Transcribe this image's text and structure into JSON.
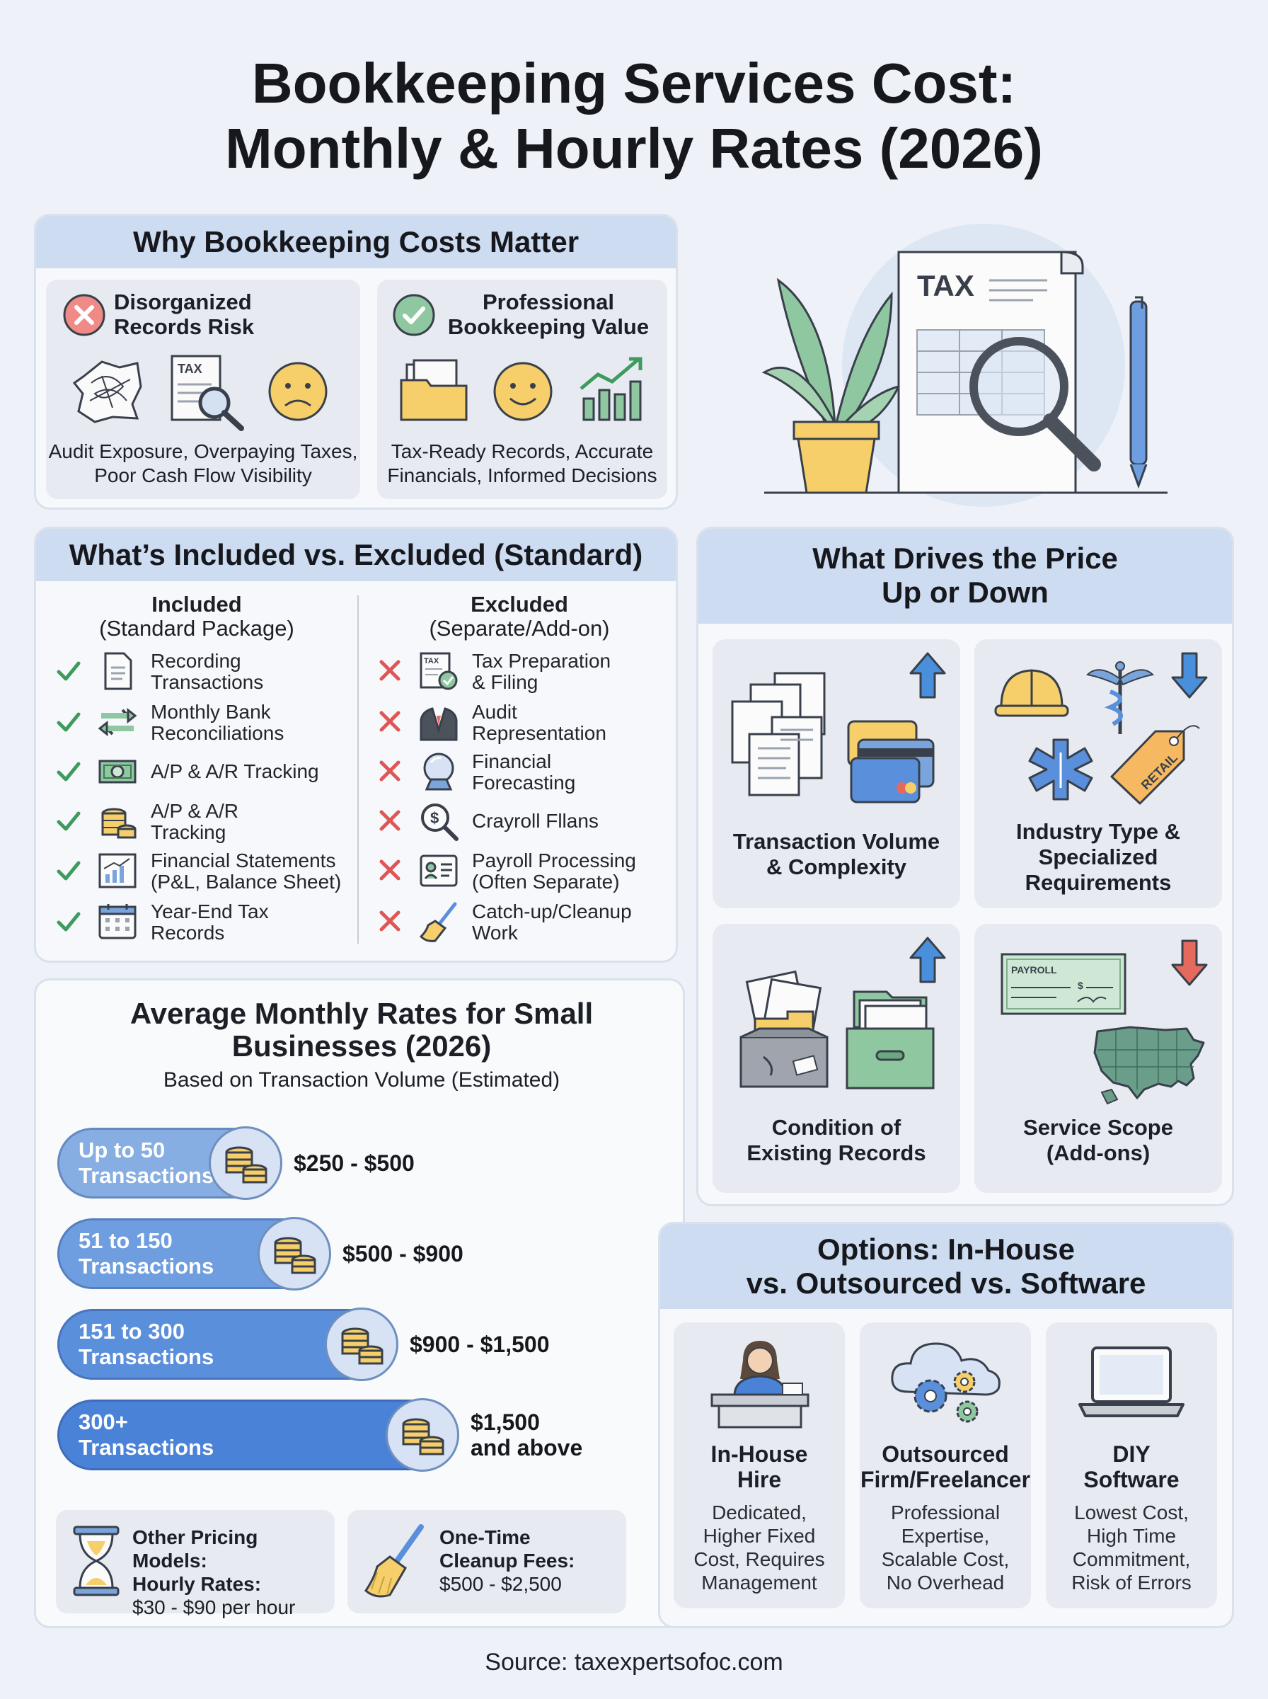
{
  "title": {
    "line1": "Bookkeeping Services Cost:",
    "line2": "Monthly & Hourly Rates (2026)"
  },
  "why": {
    "heading": "Why Bookkeeping Costs Matter",
    "risk": {
      "title_line1": "Disorganized",
      "title_line2": "Records Risk",
      "desc_line1": "Audit Exposure, Overpaying Taxes,",
      "desc_line2": "Poor Cash Flow Visibility",
      "doc_label": "TAX"
    },
    "value": {
      "title_line1": "Professional",
      "title_line2": "Bookkeeping Value",
      "desc_line1": "Tax-Ready Records, Accurate",
      "desc_line2": "Financials, Informed Decisions"
    }
  },
  "hero": {
    "doc_label": "TAX"
  },
  "included": {
    "heading": "What’s Included vs. Excluded (Standard)",
    "included_title": "Included",
    "included_subtitle": "(Standard Package)",
    "excluded_title": "Excluded",
    "excluded_subtitle": "(Separate/Add-on)",
    "items": [
      {
        "l1": "Recording",
        "l2": "Transactions",
        "icon": "document-icon"
      },
      {
        "l1": "Monthly Bank",
        "l2": "Reconciliations",
        "icon": "exchange-arrows-icon"
      },
      {
        "l1": "A/P & A/R Tracking",
        "l2": "",
        "icon": "cash-bill-icon"
      },
      {
        "l1": "A/P & A/R",
        "l2": "Tracking",
        "icon": "coin-stack-icon"
      },
      {
        "l1": "Financial Statements",
        "l2": "(P&L, Balance Sheet)",
        "icon": "bar-chart-icon"
      },
      {
        "l1": "Year-End Tax",
        "l2": "Records",
        "icon": "calendar-icon"
      }
    ],
    "excluded_items": [
      {
        "l1": "Tax Preparation",
        "l2": "& Filing",
        "icon": "tax-check-icon",
        "doc_label": "TAX"
      },
      {
        "l1": "Audit",
        "l2": "Representation",
        "icon": "suit-icon"
      },
      {
        "l1": "Financial",
        "l2": "Forecasting",
        "icon": "crystal-ball-icon"
      },
      {
        "l1": "Crayroll Fllans",
        "l2": "",
        "icon": "dollar-magnifier-icon"
      },
      {
        "l1": "Payroll Processing",
        "l2": "(Often Separate)",
        "icon": "id-card-icon"
      },
      {
        "l1": "Catch-up/Cleanup",
        "l2": "Work",
        "icon": "broom-icon"
      }
    ]
  },
  "rates": {
    "title_line1": "Average Monthly Rates for Small",
    "title_line2": "Businesses (2026)",
    "subtitle": "Based on Transaction Volume (Estimated)",
    "tiers": [
      {
        "l1": "Up to 50",
        "l2": "Transactions",
        "p1": "$250 - $500",
        "p2": "",
        "color": "#86aee3",
        "fill": 0.47
      },
      {
        "l1": "51 to 150",
        "l2": "Transactions",
        "p1": "$500 - $900",
        "p2": "",
        "color": "#6f9ee0",
        "fill": 0.55
      },
      {
        "l1": "151 to 300",
        "l2": "Transactions",
        "p1": "$900 - $1,500",
        "p2": "",
        "color": "#5a8fdc",
        "fill": 0.66
      },
      {
        "l1": "300+",
        "l2": "Transactions",
        "p1": "$1,500",
        "p2": "and above",
        "color": "#4a82d8",
        "fill": 0.76
      }
    ],
    "other": {
      "title": "Other Pricing Models:",
      "sub": "Hourly Rates:",
      "value": "$30 - $90 per hour"
    },
    "cleanup": {
      "title": "One-Time",
      "sub": "Cleanup Fees:",
      "value": "$500 - $2,500"
    }
  },
  "drivers": {
    "heading_line1": "What Drives the Price",
    "heading_line2": "Up or Down",
    "items": [
      {
        "l1": "Transaction Volume",
        "l2": "& Complexity",
        "l3": "",
        "direction": "up"
      },
      {
        "l1": "Industry Type &",
        "l2": "Specialized",
        "l3": "Requirements",
        "direction": "down"
      },
      {
        "l1": "Condition of",
        "l2": "Existing Records",
        "l3": "",
        "direction": "up"
      },
      {
        "l1": "Service Scope",
        "l2": "(Add-ons)",
        "l3": "",
        "direction": "down"
      }
    ],
    "retail_tag": "RETAIL",
    "payroll_check": "PAYROLL",
    "check_dollar": "$"
  },
  "options": {
    "heading_line1": "Options: In-House",
    "heading_line2": "vs. Outsourced vs. Software",
    "items": [
      {
        "t1": "In-House",
        "t2": "Hire",
        "d": [
          "Dedicated,",
          "Higher Fixed",
          "Cost, Requires",
          "Management"
        ]
      },
      {
        "t1": "Outsourced",
        "t2": "Firm/Freelancer",
        "d": [
          "Professional",
          "Expertise,",
          "Scalable Cost,",
          "No Overhead"
        ]
      },
      {
        "t1": "DIY",
        "t2": "Software",
        "d": [
          "Lowest Cost,",
          "High Time",
          "Commitment,",
          "Risk of Errors"
        ]
      }
    ]
  },
  "source": "Source: taxexpertsofoc.com",
  "colors": {
    "accent_blue": "#4a82d8",
    "header_blue": "#cddcf1",
    "check_green": "#3f9a5e",
    "cross_red": "#e05555",
    "arrow_up_blue": "#4a8fdc",
    "arrow_down_red": "#e46a5e"
  }
}
